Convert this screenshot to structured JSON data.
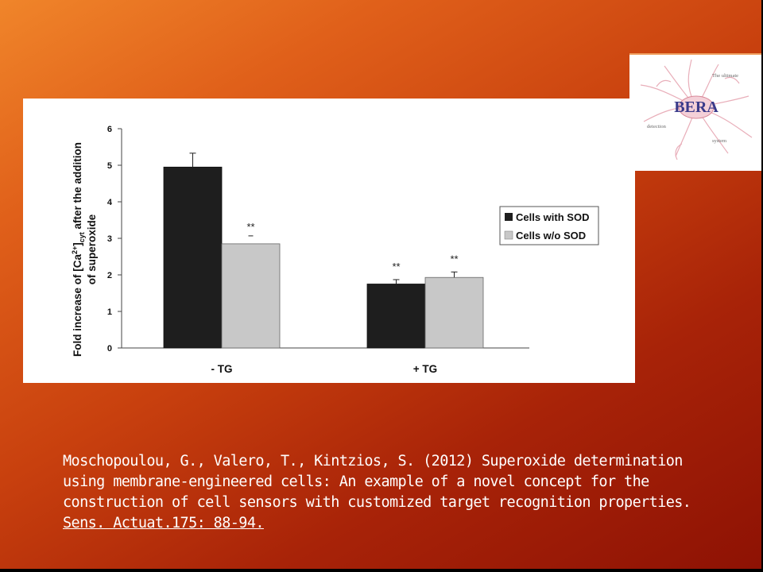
{
  "slide": {
    "citation_lines": [
      "Moschopoulou, G., Valero, T., Kintzios, S. (2012) Superoxide determination",
      "using membrane-engineered cells: An example of a novel concept for the",
      "construction of cell sensors with customized target recognition properties."
    ],
    "citation_ref": "Sens. Actuat.175: 88-94."
  },
  "logo": {
    "brand": "BERA",
    "text_top": "The ultimate",
    "text_left": "detection",
    "text_right": "system",
    "colors": {
      "brand": "#3a3a8a",
      "cell": "#e08a9a"
    }
  },
  "chart_data": {
    "type": "bar",
    "categories": [
      "- TG",
      "+ TG"
    ],
    "series": [
      {
        "name": "Cells with SOD",
        "values": [
          4.95,
          1.75
        ],
        "errors": [
          0.38,
          0.12
        ],
        "color": "#1e1e1e",
        "markers": [
          "",
          "**"
        ]
      },
      {
        "name": "Cells w/o SOD",
        "values": [
          2.85,
          1.93
        ],
        "errors": [
          0.0,
          0.15
        ],
        "color": "#c8c8c8",
        "markers": [
          "**",
          "**"
        ]
      }
    ],
    "ylabel_line1": "Fold increase of  [Ca",
    "ylabel_sup": "2+",
    "ylabel_mid": "]",
    "ylabel_sub": "cyt",
    "ylabel_rest": " after the addition",
    "ylabel_line2": "of superoxide",
    "yticks": [
      "0",
      "1",
      "2",
      "3",
      "4",
      "5",
      "6"
    ],
    "ylim": [
      0,
      6
    ],
    "legend_position": "right",
    "grid": false
  }
}
